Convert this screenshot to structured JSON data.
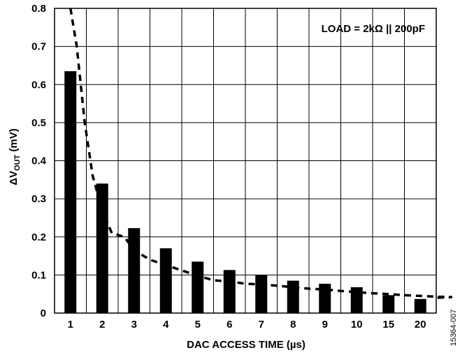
{
  "chart_data": {
    "type": "bar",
    "categories": [
      "1",
      "2",
      "3",
      "4",
      "5",
      "6",
      "7",
      "8",
      "9",
      "10",
      "15",
      "20"
    ],
    "values": [
      0.635,
      0.34,
      0.223,
      0.17,
      0.135,
      0.113,
      0.1,
      0.085,
      0.077,
      0.068,
      0.047,
      0.037
    ],
    "trend_line": {
      "style": "dashed",
      "values": [
        0.8,
        0.8,
        0.7,
        0.5,
        0.36,
        0.27,
        0.21,
        0.2,
        0.165,
        0.14,
        0.126,
        0.112,
        0.098,
        0.086,
        0.083,
        0.077,
        0.075,
        0.072,
        0.068,
        0.064,
        0.062,
        0.058,
        0.055,
        0.052,
        0.05,
        0.047,
        0.045,
        0.043,
        0.042,
        0.04,
        0.04
      ],
      "x": [
        0.0,
        0.0,
        0.2,
        0.45,
        0.7,
        1.0,
        1.3,
        1.7,
        2.0,
        2.5,
        3.0,
        3.5,
        4.0,
        4.5,
        5.0,
        5.5,
        6.0,
        6.5,
        7.0,
        7.5,
        8.0,
        8.5,
        9.0,
        9.5,
        10.0,
        10.5,
        11.0,
        11.5,
        12.0,
        11.5,
        11.5
      ]
    },
    "xlabel": "DAC ACCESS TIME (µs)",
    "ylabel": {
      "prefix": "ΔV",
      "subscript": "OUT",
      "suffix": " (mV)"
    },
    "ylim": [
      0,
      0.8
    ],
    "yticks": [
      "0",
      "0.1",
      "0.2",
      "0.3",
      "0.4",
      "0.5",
      "0.6",
      "0.7",
      "0.8"
    ],
    "grid": true,
    "annotation": "LOAD = 2kΩ || 200pF",
    "figure_id": "15364-007"
  },
  "colors": {
    "bar": "#000000",
    "grid": "#000000",
    "background": "#ffffff"
  }
}
